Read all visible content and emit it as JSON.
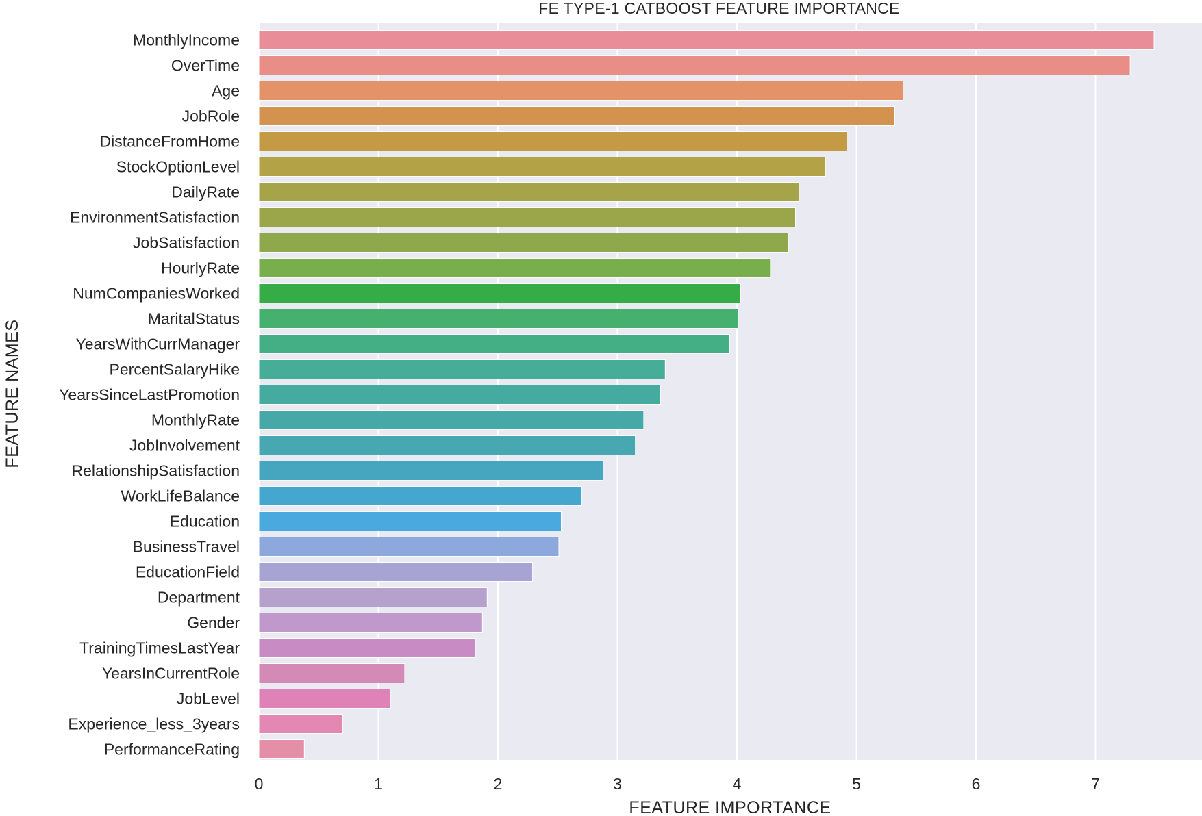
{
  "chart_data": {
    "type": "bar",
    "orientation": "horizontal",
    "title": "FE TYPE-1 CATBOOST FEATURE IMPORTANCE",
    "xlabel": "FEATURE IMPORTANCE",
    "ylabel": "FEATURE NAMES",
    "xlim": [
      0,
      7.8
    ],
    "xticks": [
      0,
      1,
      2,
      3,
      4,
      5,
      6,
      7
    ],
    "grid": true,
    "background": "#eaeaf2",
    "categories": [
      "MonthlyIncome",
      "OverTime",
      "Age",
      "JobRole",
      "DistanceFromHome",
      "StockOptionLevel",
      "DailyRate",
      "EnvironmentSatisfaction",
      "JobSatisfaction",
      "HourlyRate",
      "NumCompaniesWorked",
      "MaritalStatus",
      "YearsWithCurrManager",
      "PercentSalaryHike",
      "YearsSinceLastPromotion",
      "MonthlyRate",
      "JobInvolvement",
      "RelationshipSatisfaction",
      "WorkLifeBalance",
      "Education",
      "BusinessTravel",
      "EducationField",
      "Department",
      "Gender",
      "TrainingTimesLastYear",
      "YearsInCurrentRole",
      "JobLevel",
      "Experience_less_3years",
      "PerformanceRating"
    ],
    "values": [
      7.49,
      7.29,
      5.39,
      5.32,
      4.92,
      4.74,
      4.52,
      4.49,
      4.43,
      4.28,
      4.03,
      4.01,
      3.94,
      3.4,
      3.36,
      3.22,
      3.15,
      2.88,
      2.7,
      2.53,
      2.51,
      2.29,
      1.91,
      1.87,
      1.81,
      1.22,
      1.1,
      0.7,
      0.38
    ],
    "colors": [
      "#e98d99",
      "#e88e87",
      "#e49368",
      "#d3924e",
      "#c49a45",
      "#b4a246",
      "#a6a448",
      "#9ba64a",
      "#8fa84b",
      "#79ae4c",
      "#35ac45",
      "#46b06e",
      "#44ae85",
      "#45ad98",
      "#45aba0",
      "#46a9a7",
      "#47a8b1",
      "#47a6bf",
      "#45a7cd",
      "#4aa9df",
      "#8da8dc",
      "#a7a4d4",
      "#b6a1cc",
      "#c098cb",
      "#c88bc4",
      "#d38ab7",
      "#de82b7",
      "#e388b2",
      "#e48ea7"
    ]
  }
}
